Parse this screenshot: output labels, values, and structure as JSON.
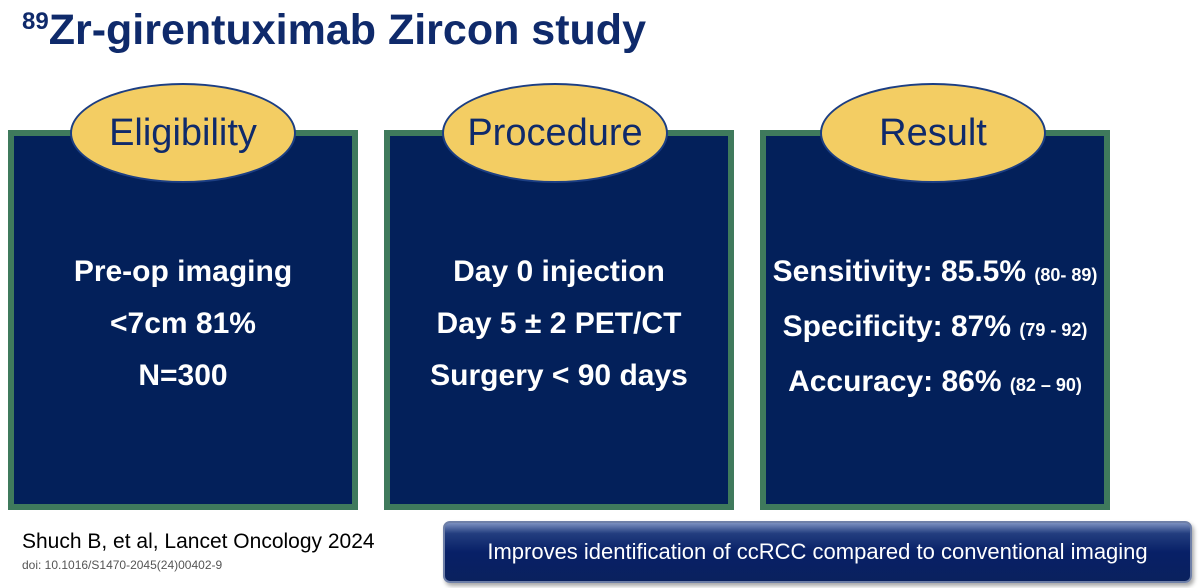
{
  "title": {
    "superscript": "89",
    "text": "Zr-girentuximab Zircon study"
  },
  "panels": [
    {
      "heading": "Eligibility",
      "lines": [
        "Pre-op imaging",
        "<7cm 81%",
        "N=300"
      ]
    },
    {
      "heading": "Procedure",
      "lines": [
        "Day 0 injection",
        "Day 5 ± 2 PET/CT",
        "Surgery < 90 days"
      ]
    },
    {
      "heading": "Result",
      "lines": [
        {
          "main": "Sensitivity: 85.5%",
          "ci": "(80- 89)"
        },
        {
          "main": "Specificity: 87%",
          "ci": "(79 - 92)"
        },
        {
          "main": "Accuracy: 86%",
          "ci": "(82 – 90)"
        }
      ]
    }
  ],
  "citation": "Shuch B, et al, Lancet Oncology 2024",
  "doi": "doi: 10.1016/S1470-2045(24)00402-9",
  "banner": "Improves identification of ccRCC compared to conventional imaging",
  "colors": {
    "title": "#0f2a6b",
    "panel_fill": "#03205a",
    "panel_border": "#3f7a5c",
    "oval_fill": "#f3cd63",
    "banner_fill": "#082067"
  }
}
